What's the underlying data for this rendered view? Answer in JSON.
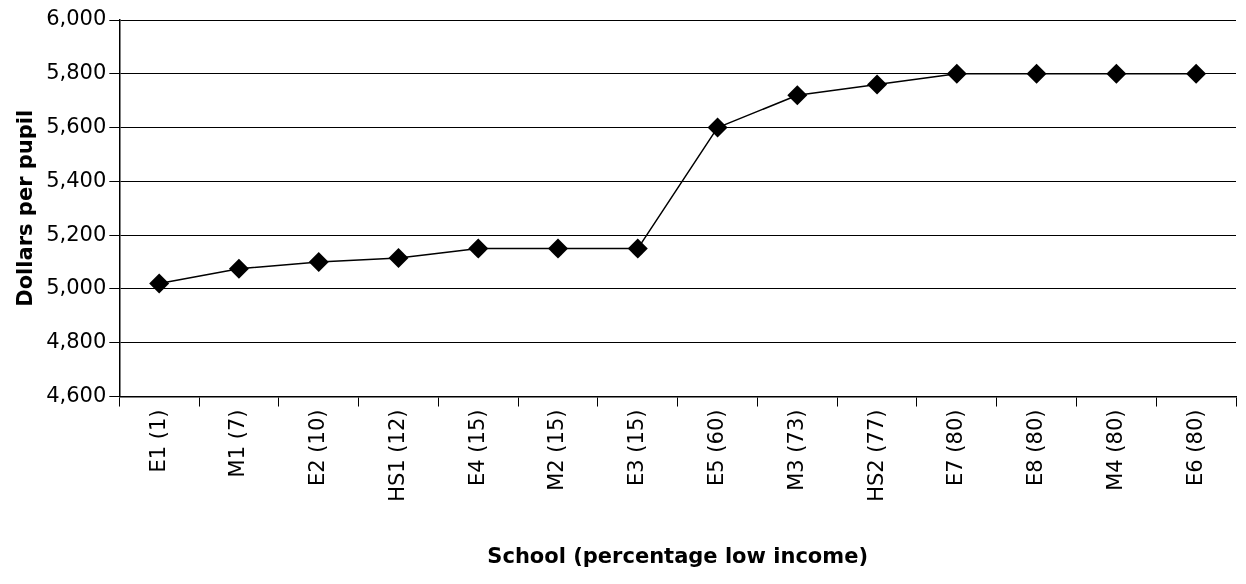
{
  "chart_data": {
    "type": "line",
    "xlabel": "School (percentage low income)",
    "ylabel": "Dollars per pupil",
    "categories": [
      "E1 (1)",
      "M1 (7)",
      "E2 (10)",
      "HS1 (12)",
      "E4 (15)",
      "M2 (15)",
      "E3 (15)",
      "E5 (60)",
      "M3 (73)",
      "HS2 (77)",
      "E7 (80)",
      "E8 (80)",
      "M4 (80)",
      "E6 (80)"
    ],
    "series": [
      {
        "color": "#000000",
        "values": [
          5020,
          5075,
          5100,
          5115,
          5150,
          5150,
          5150,
          5600,
          5720,
          5760,
          5800,
          5800,
          5800,
          5800
        ]
      }
    ],
    "ylim": [
      4600,
      6000
    ],
    "yticks": [
      {
        "value": 4600,
        "label": "4,600"
      },
      {
        "value": 4800,
        "label": "4,800"
      },
      {
        "value": 5000,
        "label": "5,000"
      },
      {
        "value": 5200,
        "label": "5,200"
      },
      {
        "value": 5400,
        "label": "5,400"
      },
      {
        "value": 5600,
        "label": "5,600"
      },
      {
        "value": 5800,
        "label": "5,800"
      },
      {
        "value": 6000,
        "label": "6,000"
      }
    ],
    "grid": "y",
    "legend": false,
    "marker": "diamond",
    "line_style": "solid"
  }
}
